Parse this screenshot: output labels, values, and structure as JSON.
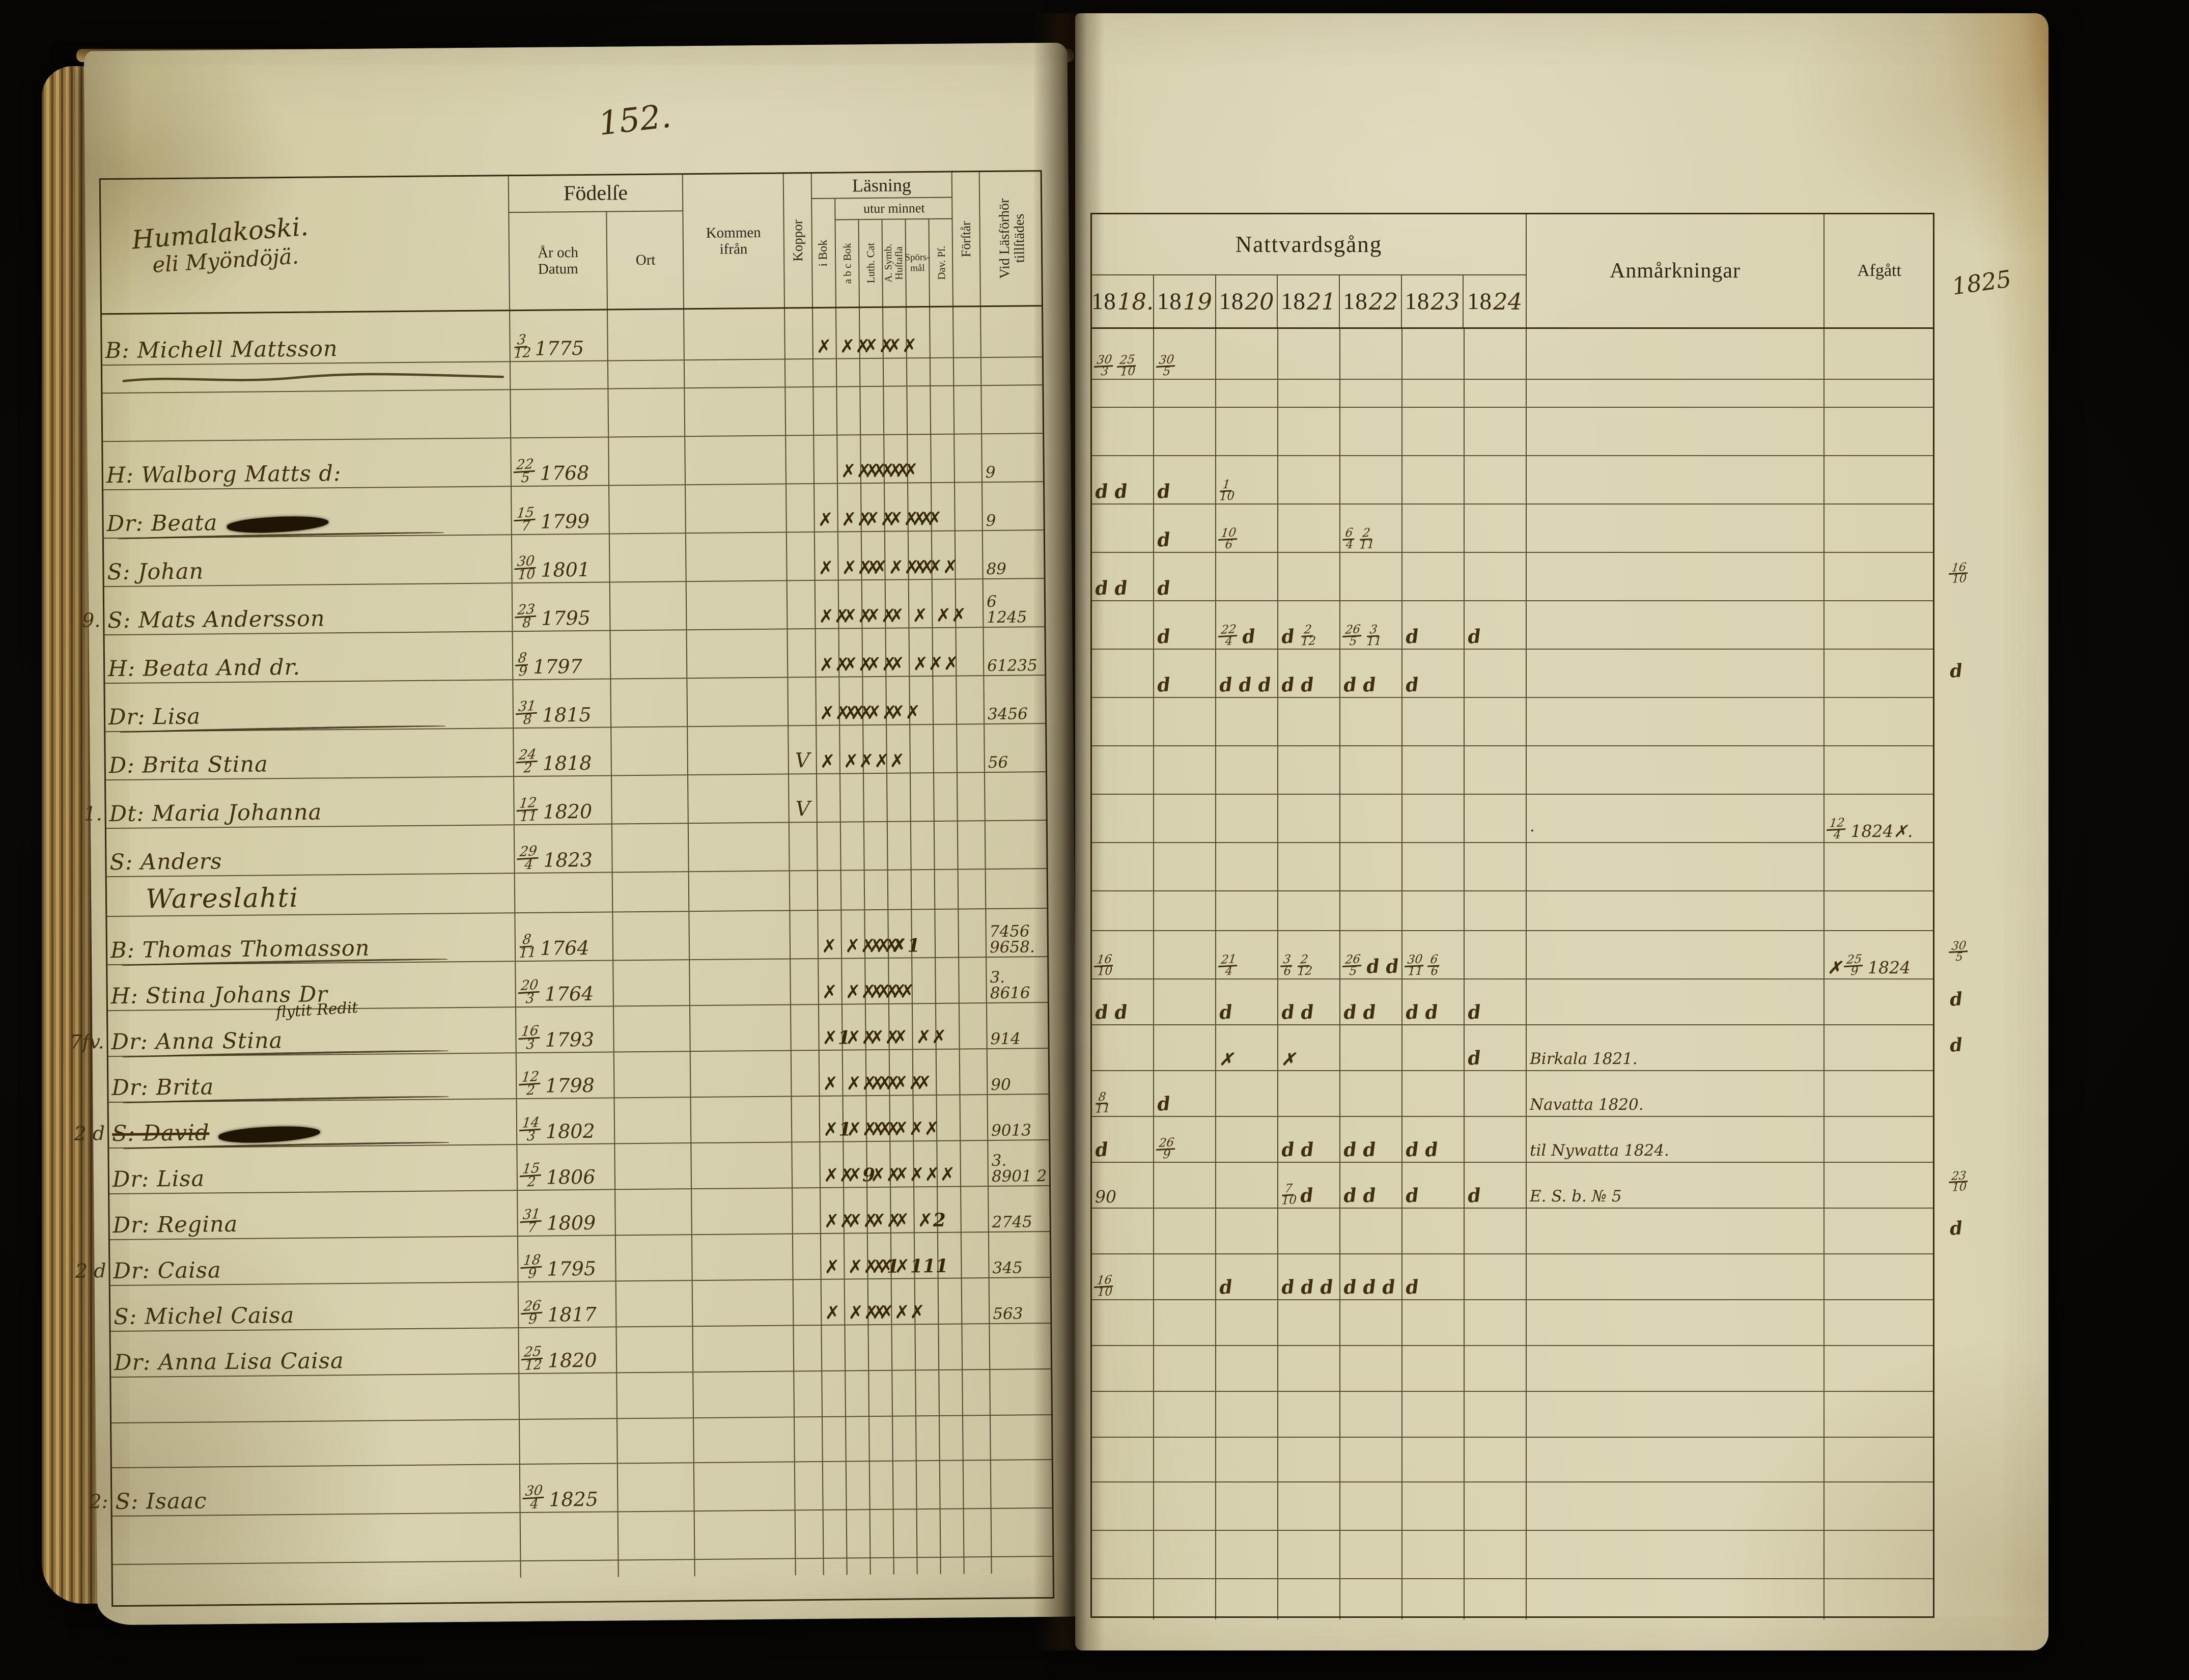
{
  "page_number": "152.",
  "colors": {
    "backdrop": "#0b0907",
    "paper": "#d8d2b0",
    "paper_edge": "#96773f",
    "ink_printed": "#2e2517",
    "ink_handwriting": "#3f2f10"
  },
  "left_page": {
    "title_line1": "Humalakoski.",
    "title_line2": "eli Myöndöjä.",
    "headers": {
      "fodelse": "Födelſe",
      "ar_och_datum": "År och\nDatum",
      "ort": "Ort",
      "kommen_ifran": "Kommen\nifrån",
      "koppor": "Koppor",
      "lasning": "Läsning",
      "utur_minnet": "utur minnet",
      "i_bok": "i Bok",
      "abc_bok": "a b c Bok",
      "luth_cat": "Luth. Cat",
      "a_symb": "A. Symb.\nHuſtafla",
      "sporsmal": "Spörs-\nmål",
      "dav_ps": "Dav. Pſ.",
      "forstar": "Förſtår",
      "vid_lasforhor": "Vid Läsförhör\ntillſtädes"
    }
  },
  "right_page": {
    "headers": {
      "nattvardsgang": "Nattvardsgång",
      "anmarkningar": "Anmårkningar",
      "afgatt": "Afgått",
      "year_extra": "1825"
    },
    "years": [
      {
        "printed": "18",
        "written": "18."
      },
      {
        "printed": "18",
        "written": "19"
      },
      {
        "printed": "18",
        "written": "20"
      },
      {
        "printed": "18",
        "written": "21"
      },
      {
        "printed": "18",
        "written": "22"
      },
      {
        "printed": "18",
        "written": "23"
      },
      {
        "printed": "18",
        "written": "24"
      }
    ]
  },
  "rows": [
    {
      "num": "",
      "name": "B: Michell Mattsson",
      "birth": {
        "d": "3",
        "m": "12",
        "y": "1775"
      },
      "koppor": "",
      "marks": [
        "x",
        "xx",
        "xx",
        "xx",
        "",
        ""
      ],
      "vidlas": [
        "",
        ""
      ],
      "nv": [
        "30/3 25/10",
        "30/5",
        "",
        "",
        "",
        "",
        ""
      ],
      "anm": [
        "",
        ""
      ],
      "afgatt": "",
      "extra": ""
    },
    {
      "type": "spacer"
    },
    {
      "type": "empty"
    },
    {
      "name": "H: Walborg Matts d:",
      "birth": {
        "d": "22",
        "m": "5",
        "y": "1768"
      },
      "marks": [
        "",
        "xxx",
        "xxx",
        "xx",
        "",
        ""
      ],
      "vidlas": [
        "",
        "9"
      ],
      "nv": [
        "d d",
        "d",
        "1/10",
        "",
        "",
        "",
        ""
      ],
      "anm": [
        "",
        ""
      ],
      "afgatt": "",
      "extra": ""
    },
    {
      "name": "Dr: Beata",
      "blot": true,
      "birth": {
        "d": "15",
        "m": "7",
        "y": "1799"
      },
      "marks": [
        "x",
        "xx",
        "xx",
        "xxx",
        "xx",
        ""
      ],
      "vidlas": [
        "",
        "9"
      ],
      "nv": [
        "",
        "d",
        "10/6",
        "",
        "6/4 2/11",
        "",
        ""
      ],
      "anm": [
        "",
        ""
      ],
      "afgatt": "",
      "extra": ""
    },
    {
      "name": "S: Johan",
      "scrib": true,
      "birth": {
        "d": "30",
        "m": "10",
        "y": "1801"
      },
      "marks": [
        "x",
        "xxx",
        "x",
        "xxx",
        "xxx",
        ""
      ],
      "vidlas": [
        "",
        "89"
      ],
      "nv": [
        "d d",
        "d",
        "",
        "",
        "",
        "",
        ""
      ],
      "anm": [
        "",
        ""
      ],
      "afgatt": "",
      "extra": "16/10"
    },
    {
      "num": "9.",
      "name": "S: Mats Andersson",
      "birth": {
        "d": "23",
        "m": "8",
        "y": "1795"
      },
      "marks": [
        "xx",
        "xx",
        "xx",
        "x",
        "x",
        "xx"
      ],
      "vidlas": [
        "6",
        "1245"
      ],
      "nv": [
        "",
        "d",
        "22/4 d",
        "d 2/12",
        "26/5 3/11",
        "d",
        "d"
      ],
      "anm": [
        "",
        ""
      ],
      "afgatt": "",
      "extra": ""
    },
    {
      "name": "H: Beata And dr.",
      "birth": {
        "d": "8",
        "m": "9",
        "y": "1797"
      },
      "marks": [
        "xx",
        "xx",
        "xx",
        "x",
        "xxx",
        ""
      ],
      "vidlas": [
        "",
        "61235"
      ],
      "nv": [
        "",
        "d",
        "dd d",
        "d d",
        "d d",
        "d",
        ""
      ],
      "anm": [
        "",
        ""
      ],
      "afgatt": "",
      "extra": "d"
    },
    {
      "name": "Dr: Lisa",
      "birth": {
        "d": "31",
        "m": "8",
        "y": "1815"
      },
      "marks": [
        "xxx",
        "xx",
        "xx",
        "xx",
        "",
        ""
      ],
      "vidlas": [
        "",
        "3456"
      ],
      "nv": [
        "",
        "",
        "",
        "",
        "",
        "",
        ""
      ],
      "anm": [
        "",
        ""
      ],
      "afgatt": "",
      "extra": ""
    },
    {
      "name": "D: Brita Stina",
      "scrib": true,
      "birth": {
        "d": "24",
        "m": "2",
        "y": "1818"
      },
      "koppor": "V",
      "marks": [
        "x",
        "xxxx",
        "",
        "",
        "",
        ""
      ],
      "vidlas": [
        "",
        "56"
      ],
      "nv": [
        "",
        "",
        "",
        "",
        "",
        "",
        ""
      ],
      "anm": [
        "",
        ""
      ],
      "afgatt": "",
      "extra": ""
    },
    {
      "num": "1.",
      "name": "Dt: Maria Johanna",
      "birth": {
        "d": "12",
        "m": "11",
        "y": "1820"
      },
      "koppor": "V",
      "marks": [
        "",
        "",
        "",
        "",
        "",
        ""
      ],
      "vidlas": [
        "",
        ""
      ],
      "nv": [
        "",
        "",
        "",
        "",
        "",
        "",
        ""
      ],
      "anm": [
        "·",
        ""
      ],
      "afgatt": "12/4 1824✗.",
      "extra": ""
    },
    {
      "name": "S: Anders",
      "birth": {
        "d": "29",
        "m": "4",
        "y": "1823"
      },
      "marks": [
        "",
        "",
        "",
        "",
        "",
        ""
      ],
      "vidlas": [
        "",
        ""
      ],
      "nv": [
        "",
        "",
        "",
        "",
        "",
        "",
        ""
      ],
      "anm": [
        "",
        ""
      ],
      "afgatt": "",
      "extra": ""
    },
    {
      "type": "section",
      "name": "Wareslahti"
    },
    {
      "name": "B: Thomas Thomasson",
      "birth": {
        "d": "8",
        "m": "11",
        "y": "1764"
      },
      "marks": [
        "x",
        "xxxx",
        "xx",
        "x1",
        "",
        ""
      ],
      "vidlas": [
        "7456",
        "9658."
      ],
      "nv": [
        "16/10",
        "",
        "21/4",
        "3/6 2/12",
        "26/5 d d",
        "30/11 6/6",
        ""
      ],
      "anm": [
        "",
        ""
      ],
      "afgatt": "✗25/9 1824",
      "extra": "30/5"
    },
    {
      "name": "H: Stina Johans Dr",
      "scrib": true,
      "birth": {
        "d": "20",
        "m": "3",
        "y": "1764"
      },
      "marks": [
        "x",
        "xxxx",
        "xxx",
        "",
        "",
        ""
      ],
      "vidlas": [
        "3.",
        "8616"
      ],
      "nv": [
        "d d",
        "",
        "d",
        "d d",
        "d d",
        "d d",
        "d"
      ],
      "anm": [
        "",
        ""
      ],
      "afgatt": "",
      "extra": "d"
    },
    {
      "num": "7fv.",
      "name": "Dr: Anna Stina",
      "note": "flytit Redit",
      "birth": {
        "d": "16",
        "m": "3",
        "y": "1793"
      },
      "marks": [
        "x1",
        "xx",
        "xx",
        "x",
        "xx",
        ""
      ],
      "vidlas": [
        "",
        "914"
      ],
      "nv": [
        "",
        "",
        "✗",
        "✗",
        "",
        "",
        "d"
      ],
      "anm": [
        "Birkala 1821.",
        ""
      ],
      "afgatt": "",
      "extra": "d"
    },
    {
      "name": "Dr: Brita",
      "scrib": true,
      "birth": {
        "d": "12",
        "m": "2",
        "y": "1798"
      },
      "marks": [
        "x",
        "xxx",
        "xx",
        "xx",
        "x",
        ""
      ],
      "vidlas": [
        "",
        "90"
      ],
      "nv": [
        "8/11",
        "d",
        "",
        "",
        "",
        "",
        ""
      ],
      "anm": [
        "Navatta 1820.",
        ""
      ],
      "afgatt": "",
      "extra": ""
    },
    {
      "num": "2 d",
      "name": "S: David",
      "strike": true,
      "blot": true,
      "scrib": true,
      "birth": {
        "d": "14",
        "m": "3",
        "y": "1802"
      },
      "marks": [
        "x1",
        "xxx",
        "xx",
        "xxx",
        "",
        ""
      ],
      "vidlas": [
        "",
        "9013"
      ],
      "nv": [
        "d",
        "26/9",
        "",
        "d d",
        "d d",
        "d d",
        ""
      ],
      "anm": [
        "til Nywatta 1824.",
        ""
      ],
      "afgatt": "",
      "extra": ""
    },
    {
      "name": "Dr: Lisa",
      "scrib": true,
      "birth": {
        "d": "15",
        "m": "2",
        "y": "1806"
      },
      "marks": [
        "xx",
        "x9",
        "xx",
        "xxxx",
        "",
        ""
      ],
      "vidlas": [
        "3.",
        "8901 2"
      ],
      "nv": [
        "90",
        "",
        "",
        "7/10 d",
        "d d",
        "d",
        "d"
      ],
      "anm": [
        "E. S. b. № 5",
        ""
      ],
      "afgatt": "",
      "extra": "23/10"
    },
    {
      "name": "Dr: Regina",
      "birth": {
        "d": "31",
        "m": "7",
        "y": "1809"
      },
      "marks": [
        "xx",
        "xx",
        "xx",
        "x",
        "x2",
        ""
      ],
      "vidlas": [
        "",
        "2745"
      ],
      "nv": [
        "",
        "",
        "",
        "",
        "",
        "",
        ""
      ],
      "anm": [
        "",
        ""
      ],
      "afgatt": "",
      "extra": "d"
    },
    {
      "num": "2 d",
      "name": "Dr: Caisa",
      "birth": {
        "d": "18",
        "m": "9",
        "y": "1795"
      },
      "marks": [
        "x",
        "xxx",
        "x1",
        "x111",
        "",
        ""
      ],
      "vidlas": [
        "",
        "345"
      ],
      "nv": [
        "16/10",
        "",
        "d",
        "d dd",
        "d dd",
        "d",
        ""
      ],
      "anm": [
        "",
        ""
      ],
      "afgatt": "",
      "extra": ""
    },
    {
      "name": "S: Michel Caisa",
      "birth": {
        "d": "26",
        "m": "9",
        "y": "1817"
      },
      "marks": [
        "x",
        "xxxxx",
        "x",
        "",
        "",
        ""
      ],
      "vidlas": [
        "",
        "563"
      ],
      "nv": [
        "",
        "",
        "",
        "",
        "",
        "",
        ""
      ],
      "anm": [
        "",
        ""
      ],
      "afgatt": "",
      "extra": ""
    },
    {
      "name": "Dr: Anna Lisa Caisa",
      "birth": {
        "d": "25",
        "m": "12",
        "y": "1820"
      },
      "marks": [
        "",
        "",
        "",
        "",
        "",
        ""
      ],
      "vidlas": [
        "",
        ""
      ],
      "nv": [
        "",
        "",
        "",
        "",
        "",
        "",
        ""
      ],
      "anm": [
        "",
        ""
      ],
      "afgatt": "",
      "extra": ""
    },
    {
      "type": "empty"
    },
    {
      "type": "empty"
    },
    {
      "num": "2:",
      "name": "S: Isaac",
      "birth": {
        "d": "30",
        "m": "4",
        "y": "1825"
      },
      "marks": [
        "",
        "",
        "",
        "",
        "",
        ""
      ],
      "vidlas": [
        "",
        ""
      ],
      "nv": [
        "",
        "",
        "",
        "",
        "",
        "",
        ""
      ],
      "anm": [
        "",
        ""
      ],
      "afgatt": "",
      "extra": ""
    },
    {
      "type": "empty"
    },
    {
      "type": "empty"
    }
  ]
}
